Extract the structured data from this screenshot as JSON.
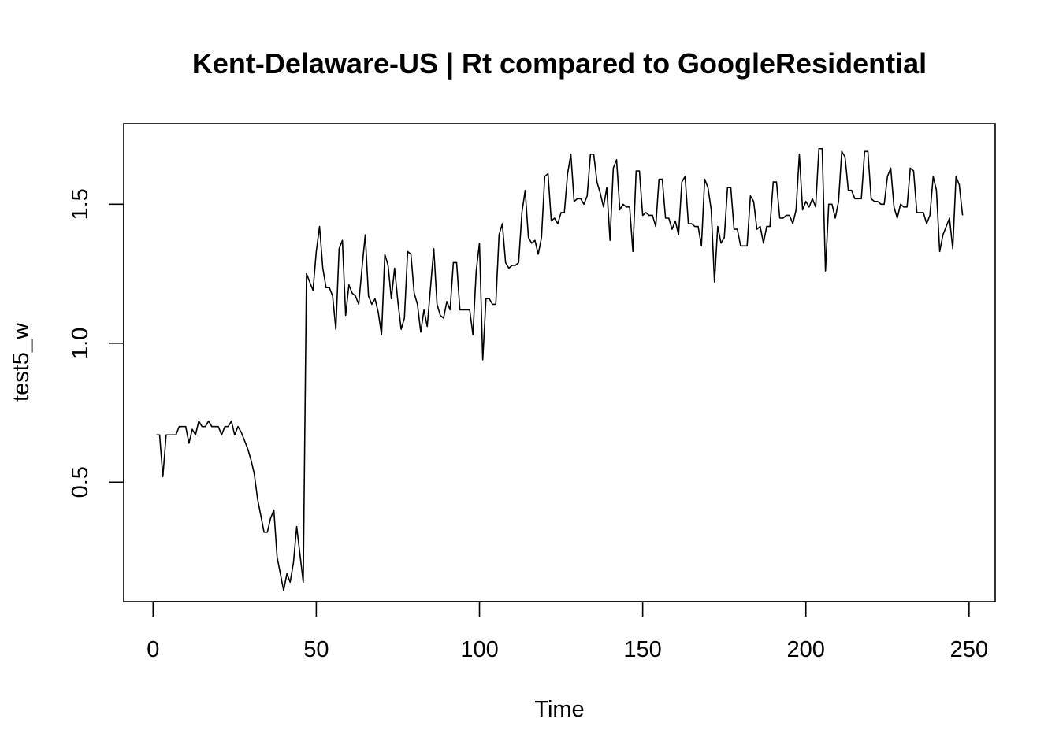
{
  "chart_data": {
    "type": "line",
    "title": "Kent-Delaware-US | Rt compared to GoogleResidential",
    "xlabel": "Time",
    "ylabel": "test5_w",
    "xlim": [
      -9,
      258
    ],
    "ylim": [
      0.07,
      1.79
    ],
    "xticks": [
      0,
      50,
      100,
      150,
      200,
      250
    ],
    "yticks": [
      0.5,
      1.0,
      1.5
    ],
    "xtick_labels": [
      "0",
      "50",
      "100",
      "150",
      "200",
      "250"
    ],
    "ytick_labels": [
      "0.5",
      "1.0",
      "1.5"
    ],
    "grid": false,
    "legend": "none",
    "line_color": "#000000",
    "series": [
      {
        "x_start": 1,
        "values": [
          0.67,
          0.67,
          0.52,
          0.67,
          0.67,
          0.67,
          0.67,
          0.7,
          0.7,
          0.7,
          0.64,
          0.69,
          0.67,
          0.72,
          0.7,
          0.7,
          0.72,
          0.7,
          0.7,
          0.7,
          0.67,
          0.7,
          0.7,
          0.72,
          0.67,
          0.7,
          0.68,
          0.65,
          0.62,
          0.58,
          0.53,
          0.44,
          0.38,
          0.32,
          0.32,
          0.37,
          0.4,
          0.23,
          0.17,
          0.11,
          0.17,
          0.14,
          0.21,
          0.34,
          0.24,
          0.14,
          1.25,
          1.22,
          1.19,
          1.33,
          1.42,
          1.27,
          1.2,
          1.2,
          1.17,
          1.05,
          1.34,
          1.37,
          1.1,
          1.21,
          1.18,
          1.17,
          1.14,
          1.27,
          1.39,
          1.17,
          1.14,
          1.16,
          1.11,
          1.03,
          1.32,
          1.28,
          1.16,
          1.27,
          1.15,
          1.05,
          1.09,
          1.33,
          1.32,
          1.18,
          1.14,
          1.04,
          1.12,
          1.06,
          1.2,
          1.34,
          1.14,
          1.1,
          1.09,
          1.15,
          1.12,
          1.29,
          1.29,
          1.12,
          1.12,
          1.12,
          1.12,
          1.03,
          1.26,
          1.36,
          0.94,
          1.16,
          1.16,
          1.14,
          1.14,
          1.39,
          1.43,
          1.29,
          1.27,
          1.28,
          1.28,
          1.29,
          1.47,
          1.55,
          1.38,
          1.36,
          1.37,
          1.32,
          1.38,
          1.6,
          1.61,
          1.44,
          1.45,
          1.43,
          1.47,
          1.47,
          1.61,
          1.68,
          1.51,
          1.52,
          1.52,
          1.5,
          1.53,
          1.68,
          1.68,
          1.58,
          1.54,
          1.49,
          1.56,
          1.37,
          1.63,
          1.66,
          1.48,
          1.5,
          1.49,
          1.49,
          1.33,
          1.62,
          1.62,
          1.46,
          1.47,
          1.46,
          1.46,
          1.42,
          1.59,
          1.59,
          1.45,
          1.45,
          1.41,
          1.44,
          1.39,
          1.58,
          1.6,
          1.43,
          1.43,
          1.42,
          1.42,
          1.35,
          1.59,
          1.56,
          1.48,
          1.22,
          1.42,
          1.36,
          1.38,
          1.56,
          1.56,
          1.41,
          1.41,
          1.35,
          1.35,
          1.35,
          1.53,
          1.51,
          1.41,
          1.42,
          1.36,
          1.42,
          1.42,
          1.58,
          1.58,
          1.45,
          1.45,
          1.46,
          1.46,
          1.43,
          1.48,
          1.68,
          1.48,
          1.51,
          1.49,
          1.52,
          1.49,
          1.7,
          1.7,
          1.26,
          1.5,
          1.5,
          1.45,
          1.51,
          1.69,
          1.67,
          1.55,
          1.55,
          1.52,
          1.52,
          1.52,
          1.69,
          1.69,
          1.52,
          1.51,
          1.51,
          1.5,
          1.5,
          1.6,
          1.63,
          1.49,
          1.45,
          1.5,
          1.49,
          1.49,
          1.63,
          1.62,
          1.47,
          1.47,
          1.47,
          1.43,
          1.46,
          1.6,
          1.55,
          1.33,
          1.39,
          1.42,
          1.45,
          1.34,
          1.6,
          1.57,
          1.46
        ]
      }
    ]
  }
}
